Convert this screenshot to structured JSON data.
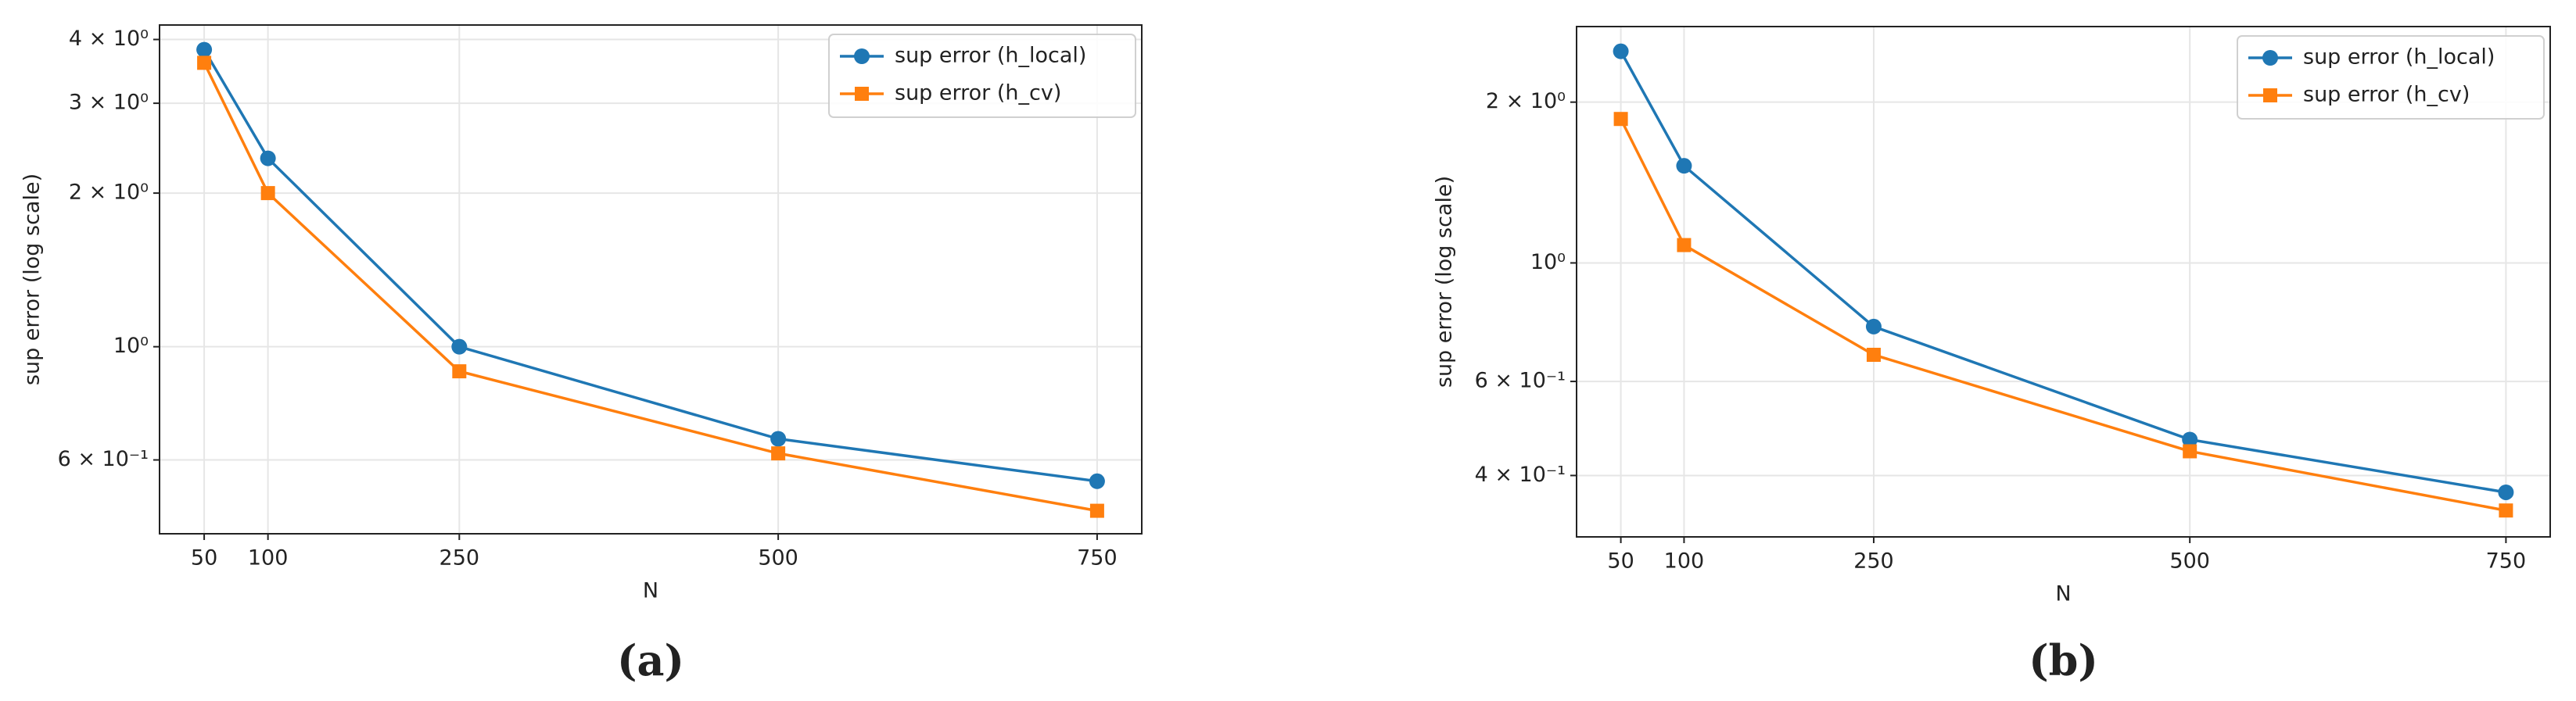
{
  "chart_data": [
    {
      "type": "line",
      "caption": "(a)",
      "xlabel": "N",
      "ylabel": "sup error (log scale)",
      "x": [
        50,
        100,
        250,
        500,
        750
      ],
      "xlim": [
        15,
        785
      ],
      "xticks": [
        50,
        100,
        250,
        500,
        750
      ],
      "ylog": true,
      "ylim": [
        0.43,
        4.27
      ],
      "yticks": [
        {
          "value": 0.6,
          "label": "6 × 10⁻¹"
        },
        {
          "value": 1,
          "label": "10⁰"
        },
        {
          "value": 2,
          "label": "2 × 10⁰"
        },
        {
          "value": 3,
          "label": "3 × 10⁰"
        },
        {
          "value": 4,
          "label": "4 × 10⁰"
        }
      ],
      "grid": true,
      "legend": "upper right",
      "series": [
        {
          "name": "sup error (h_local)",
          "color": "#1f77b4",
          "marker": "o",
          "values": [
            3.82,
            2.34,
            1.0,
            0.66,
            0.545
          ]
        },
        {
          "name": "sup error (h_cv)",
          "color": "#ff7f0e",
          "marker": "s",
          "values": [
            3.6,
            2.0,
            0.895,
            0.618,
            0.477
          ]
        }
      ]
    },
    {
      "type": "line",
      "caption": "(b)",
      "xlabel": "N",
      "ylabel": "sup error (log scale)",
      "x": [
        50,
        100,
        250,
        500,
        750
      ],
      "xlim": [
        15,
        785
      ],
      "xticks": [
        50,
        100,
        250,
        500,
        750
      ],
      "ylog": true,
      "ylim": [
        0.307,
        2.77
      ],
      "yticks": [
        {
          "value": 0.4,
          "label": "4 × 10⁻¹"
        },
        {
          "value": 0.6,
          "label": "6 × 10⁻¹"
        },
        {
          "value": 1,
          "label": "10⁰"
        },
        {
          "value": 2,
          "label": "2 × 10⁰"
        }
      ],
      "grid": true,
      "legend": "upper right",
      "series": [
        {
          "name": "sup error (h_local)",
          "color": "#1f77b4",
          "marker": "o",
          "values": [
            2.49,
            1.52,
            0.76,
            0.467,
            0.372
          ]
        },
        {
          "name": "sup error (h_cv)",
          "color": "#ff7f0e",
          "marker": "s",
          "values": [
            1.86,
            1.08,
            0.673,
            0.444,
            0.344
          ]
        }
      ]
    }
  ]
}
